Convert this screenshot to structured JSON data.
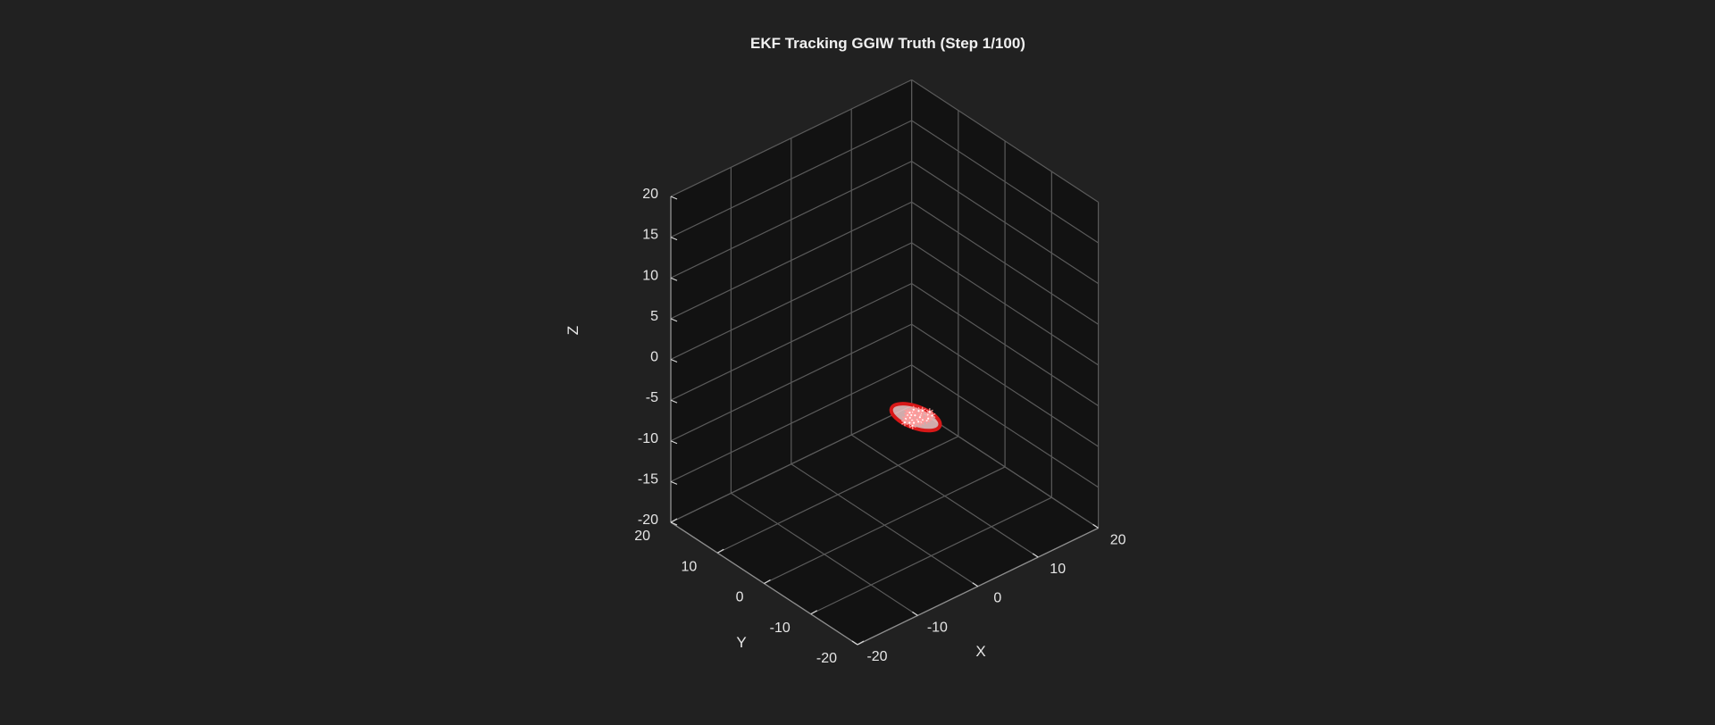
{
  "chart_data": {
    "type": "scatter",
    "projection": "3d",
    "title": "EKF Tracking GGIW Truth (Step 1/100)",
    "xlabel": "X",
    "ylabel": "Y",
    "zlabel": "Z",
    "xlim": [
      -20,
      20
    ],
    "ylim": [
      -20,
      20
    ],
    "zlim": [
      -20,
      20
    ],
    "x_ticks": [
      "-20",
      "-10",
      "0",
      "10",
      "20"
    ],
    "y_ticks": [
      "-20",
      "-10",
      "0",
      "10",
      "20"
    ],
    "z_ticks": [
      "-20",
      "-15",
      "-10",
      "-5",
      "0",
      "5",
      "10",
      "15",
      "20"
    ],
    "grid": true,
    "legend": "none",
    "colors": {
      "background": "#212121",
      "axes_face": "#121212",
      "grid": "#5a5a5a",
      "text": "#e6e6e6",
      "marker": "#ff9a9a",
      "marker_center": "#ffffff",
      "ellipse_edge": "#d81818",
      "ellipse_fill": "#f2c7c7"
    },
    "marker_symbol": "asterisk",
    "extent_ellipse": {
      "center": [
        0.9,
        -5.5,
        -5
      ],
      "semi_axes": [
        1.8,
        1.1
      ],
      "orientation_deg": 20
    },
    "points": [
      {
        "x": -0.6,
        "y": -6.8,
        "z": -5
      },
      {
        "x": 0.9,
        "y": -3.8,
        "z": -5
      },
      {
        "x": 2.0,
        "y": -5.2,
        "z": -5
      },
      {
        "x": 1.4,
        "y": -4.3,
        "z": -5
      },
      {
        "x": 1.5,
        "y": -7.1,
        "z": -5
      },
      {
        "x": 0.1,
        "y": -5.8,
        "z": -5
      },
      {
        "x": 2.5,
        "y": -4.9,
        "z": -5
      },
      {
        "x": -0.3,
        "y": -4.9,
        "z": -5
      },
      {
        "x": 0.6,
        "y": -7.0,
        "z": -5
      },
      {
        "x": 1.1,
        "y": -5.1,
        "z": -5
      },
      {
        "x": 2.4,
        "y": -6.2,
        "z": -5
      },
      {
        "x": 0.4,
        "y": -4.4,
        "z": -5
      },
      {
        "x": 1.8,
        "y": -3.9,
        "z": -5
      },
      {
        "x": -0.9,
        "y": -5.5,
        "z": -5
      },
      {
        "x": 0.7,
        "y": -6.1,
        "z": -5
      },
      {
        "x": 1.6,
        "y": -5.6,
        "z": -5
      },
      {
        "x": 3.0,
        "y": -5.8,
        "z": -5
      },
      {
        "x": -0.1,
        "y": -6.4,
        "z": -5
      },
      {
        "x": 1.2,
        "y": -6.6,
        "z": -5
      },
      {
        "x": 2.1,
        "y": -4.6,
        "z": -5
      },
      {
        "x": 0.3,
        "y": -5.1,
        "z": -5
      },
      {
        "x": 1.9,
        "y": -6.9,
        "z": -5
      },
      {
        "x": 0.8,
        "y": -4.7,
        "z": -5
      },
      {
        "x": -0.5,
        "y": -6.0,
        "z": -5
      },
      {
        "x": 2.7,
        "y": -6.7,
        "z": -5
      },
      {
        "x": 1.3,
        "y": -5.9,
        "z": -5
      },
      {
        "x": 0.5,
        "y": -6.6,
        "z": -5
      },
      {
        "x": 1.0,
        "y": -4.1,
        "z": -5
      }
    ]
  }
}
